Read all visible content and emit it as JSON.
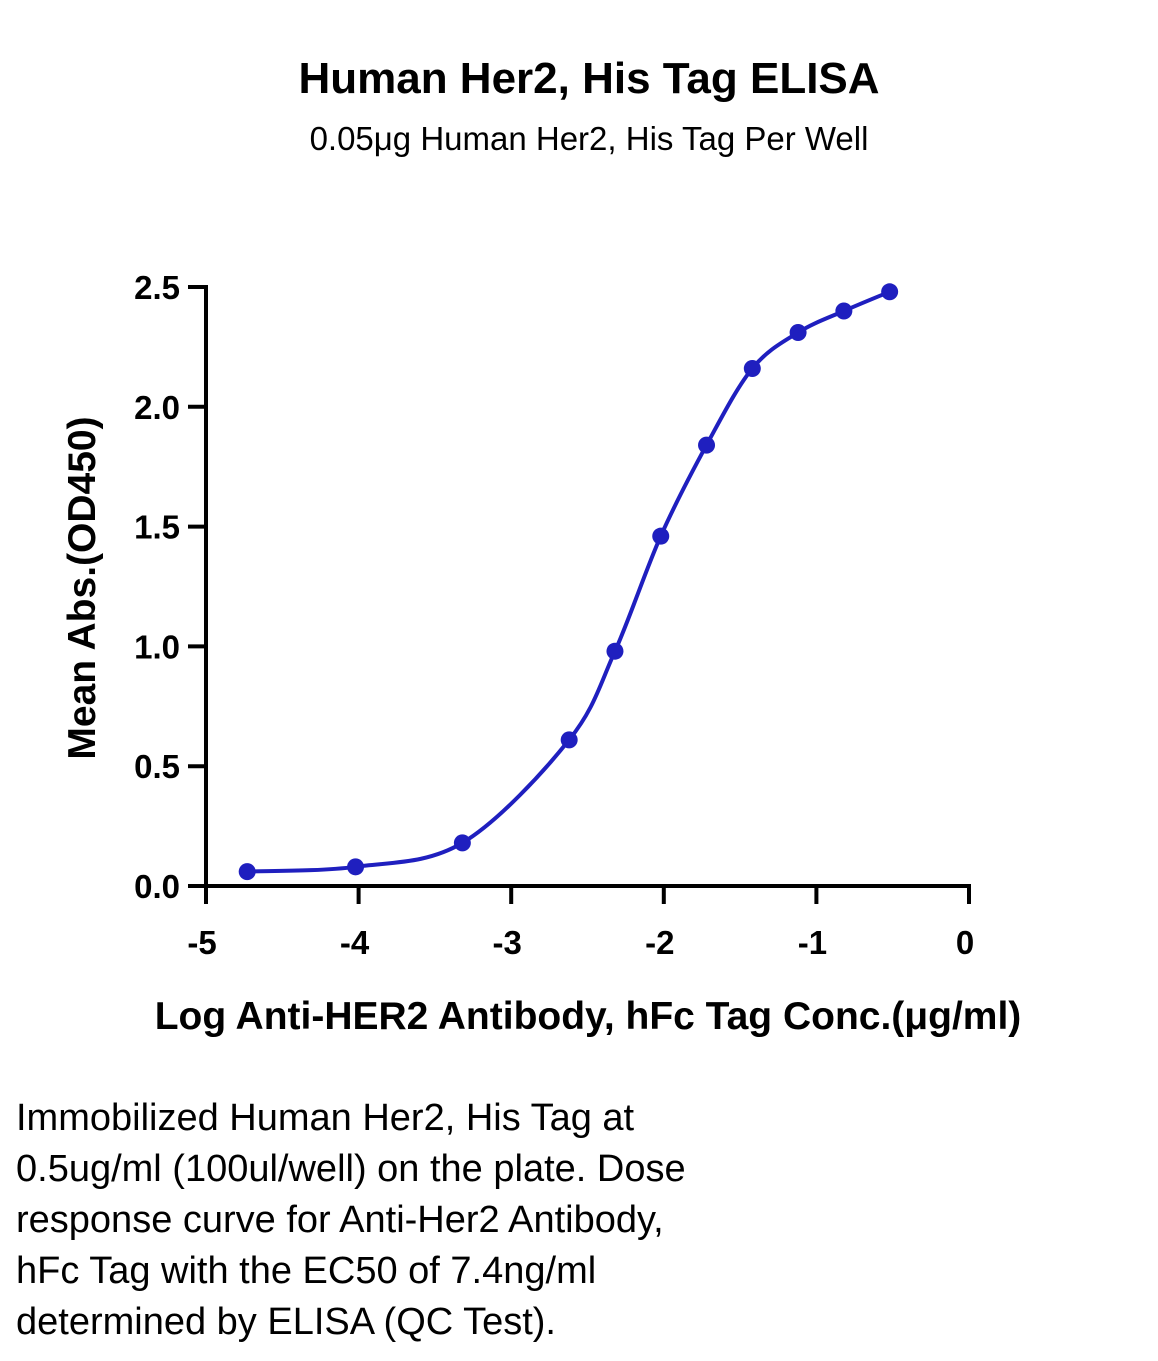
{
  "chart_data": {
    "type": "line",
    "title": "Human Her2, His Tag ELISA",
    "subtitle": "0.05μg Human Her2, His Tag Per Well",
    "xlabel": "Log Anti-HER2 Antibody, hFc Tag Conc.(μg/ml)",
    "ylabel": "Mean Abs.(OD450)",
    "xlim": [
      -5,
      0
    ],
    "ylim": [
      0,
      2.5
    ],
    "x_ticks": [
      "-5",
      "-4",
      "-3",
      "-2",
      "-1",
      "0"
    ],
    "y_ticks": [
      "0.0",
      "0.5",
      "1.0",
      "1.5",
      "2.0",
      "2.5"
    ],
    "grid": false,
    "series": [
      {
        "color": "#1f1fbf",
        "x": [
          -4.73,
          -4.02,
          -3.32,
          -2.62,
          -2.32,
          -2.02,
          -1.72,
          -1.42,
          -1.12,
          -0.82,
          -0.52
        ],
        "y": [
          0.06,
          0.08,
          0.18,
          0.61,
          0.98,
          1.46,
          1.84,
          2.16,
          2.31,
          2.4,
          2.48
        ]
      }
    ]
  },
  "caption": {
    "lines": [
      "Immobilized Human Her2, His Tag at",
      "0.5ug/ml (100ul/well) on the plate. Dose",
      "response curve for Anti-Her2 Antibody,",
      "hFc Tag with the EC50 of 7.4ng/ml",
      "determined by ELISA (QC Test)."
    ]
  }
}
